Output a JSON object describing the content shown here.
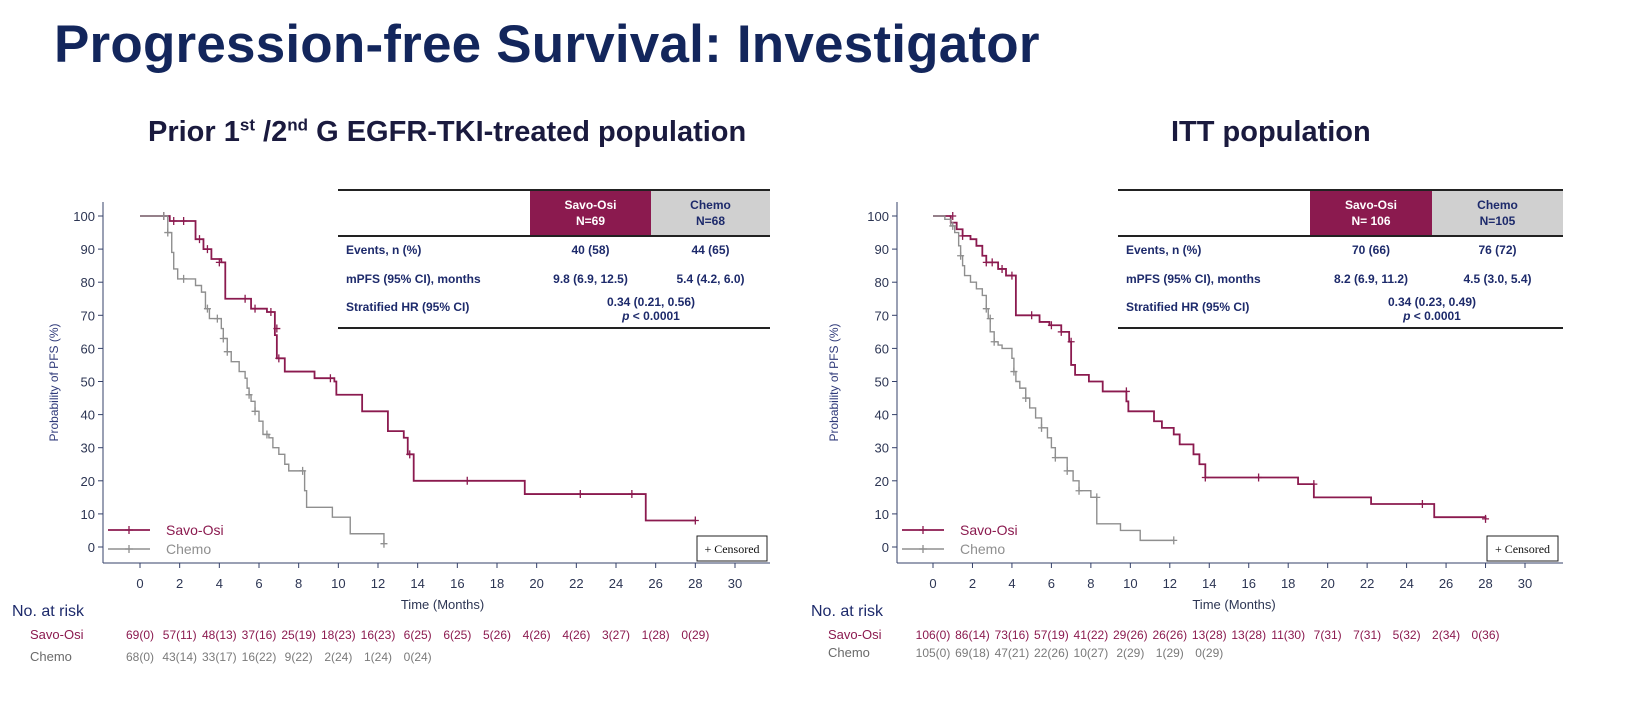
{
  "slide": {
    "title": "Progression-free Survival: Investigator"
  },
  "colors": {
    "title": "#13265c",
    "savo": "#8b1a4f",
    "chemo": "#8f8f8f",
    "axis": "#34406a"
  },
  "panels": [
    {
      "subtitle": {
        "pre": "Prior 1",
        "sup1": "st",
        "mid": " /2",
        "sup2": "nd",
        "post": " G EGFR-TKI-treated population"
      },
      "table": {
        "headers": [
          {
            "line1": "Savo-Osi",
            "line2": "N=69"
          },
          {
            "line1": "Chemo",
            "line2": "N=68"
          }
        ],
        "rows": [
          {
            "label": "Events, n (%)",
            "savo": "40 (58)",
            "chemo": "44 (65)"
          },
          {
            "label": "mPFS (95% CI), months",
            "savo": "9.8 (6.9, 12.5)",
            "chemo": "5.4 (4.2, 6.0)"
          }
        ],
        "hr": {
          "label": "Stratified HR (95% CI)",
          "value": "0.34 (0.21, 0.56)",
          "p_italic": "p",
          "p_rest": " < 0.0001"
        }
      },
      "risk": {
        "header": "No. at risk",
        "savo_label": "Savo-Osi",
        "chemo_label": "Chemo",
        "savo": [
          "69(0)",
          "57(11)",
          "48(13)",
          "37(16)",
          "25(19)",
          "18(23)",
          "16(23)",
          "6(25)",
          "6(25)",
          "5(26)",
          "4(26)",
          "4(26)",
          "3(27)",
          "1(28)",
          "0(29)"
        ],
        "chemo": [
          "68(0)",
          "43(14)",
          "33(17)",
          "16(22)",
          "9(22)",
          "2(24)",
          "1(24)",
          "0(24)"
        ]
      }
    },
    {
      "subtitle": {
        "pre": "ITT population",
        "sup1": "",
        "mid": "",
        "sup2": "",
        "post": ""
      },
      "table": {
        "headers": [
          {
            "line1": "Savo-Osi",
            "line2": "N= 106"
          },
          {
            "line1": "Chemo",
            "line2": "N=105"
          }
        ],
        "rows": [
          {
            "label": "Events, n (%)",
            "savo": "70 (66)",
            "chemo": "76 (72)"
          },
          {
            "label": "mPFS (95% CI), months",
            "savo": "8.2 (6.9, 11.2)",
            "chemo": "4.5 (3.0, 5.4)"
          }
        ],
        "hr": {
          "label": "Stratified HR (95% CI)",
          "value": "0.34 (0.23, 0.49)",
          "p_italic": "p",
          "p_rest": " < 0.0001"
        }
      },
      "risk": {
        "header": "No. at risk",
        "savo_label": "Savo-Osi",
        "chemo_label": "Chemo",
        "savo": [
          "106(0)",
          "86(14)",
          "73(16)",
          "57(19)",
          "41(22)",
          "29(26)",
          "26(26)",
          "13(28)",
          "13(28)",
          "11(30)",
          "7(31)",
          "7(31)",
          "5(32)",
          "2(34)",
          "0(36)"
        ],
        "chemo": [
          "105(0)",
          "69(18)",
          "47(21)",
          "22(26)",
          "10(27)",
          "2(29)",
          "1(29)",
          "0(29)"
        ]
      }
    }
  ],
  "chart_data": [
    {
      "type": "line",
      "title": "Prior 1st /2nd G EGFR-TKI-treated population",
      "xlabel": "Time (Months)",
      "ylabel": "Probability of PFS (%)",
      "xlim": [
        0,
        30
      ],
      "ylim": [
        0,
        100
      ],
      "xticks": [
        0,
        2,
        4,
        6,
        8,
        10,
        12,
        14,
        16,
        18,
        20,
        22,
        24,
        26,
        28,
        30
      ],
      "yticks": [
        0,
        10,
        20,
        30,
        40,
        50,
        60,
        70,
        80,
        90,
        100
      ],
      "legend": [
        "Savo-Osi",
        "Chemo"
      ],
      "censored_label": "+ Censored",
      "series": [
        {
          "name": "Savo-Osi",
          "steps": [
            [
              0,
              100
            ],
            [
              1.5,
              98.5
            ],
            [
              2.8,
              93
            ],
            [
              3.2,
              90
            ],
            [
              3.6,
              87
            ],
            [
              4.1,
              86
            ],
            [
              4.3,
              75
            ],
            [
              5.6,
              72
            ],
            [
              6.4,
              71
            ],
            [
              6.8,
              64
            ],
            [
              6.9,
              57
            ],
            [
              7.3,
              53
            ],
            [
              8.8,
              51
            ],
            [
              9.8,
              50
            ],
            [
              9.9,
              46
            ],
            [
              11.2,
              41
            ],
            [
              12.5,
              35
            ],
            [
              13.3,
              33
            ],
            [
              13.5,
              28
            ],
            [
              13.8,
              20
            ],
            [
              19.4,
              16
            ],
            [
              25.5,
              8
            ],
            [
              28,
              8
            ]
          ],
          "censors": [
            [
              1.2,
              100
            ],
            [
              1.7,
              98.5
            ],
            [
              2.2,
              98.5
            ],
            [
              3.0,
              93
            ],
            [
              3.4,
              90
            ],
            [
              4.0,
              86
            ],
            [
              5.3,
              75
            ],
            [
              5.8,
              72
            ],
            [
              6.6,
              71
            ],
            [
              6.9,
              66
            ],
            [
              7.0,
              57
            ],
            [
              9.6,
              51
            ],
            [
              13.6,
              28
            ],
            [
              16.5,
              20
            ],
            [
              22.2,
              16
            ],
            [
              24.8,
              16
            ],
            [
              28,
              8
            ]
          ]
        },
        {
          "name": "Chemo",
          "steps": [
            [
              0,
              100
            ],
            [
              1.4,
              95
            ],
            [
              1.6,
              89
            ],
            [
              1.7,
              84
            ],
            [
              1.9,
              81
            ],
            [
              2.8,
              79
            ],
            [
              3.1,
              77
            ],
            [
              3.3,
              72
            ],
            [
              3.5,
              69
            ],
            [
              4.1,
              66
            ],
            [
              4.2,
              63
            ],
            [
              4.4,
              59
            ],
            [
              4.6,
              56
            ],
            [
              5.0,
              53
            ],
            [
              5.3,
              51
            ],
            [
              5.4,
              48
            ],
            [
              5.5,
              46
            ],
            [
              5.6,
              44
            ],
            [
              5.8,
              41
            ],
            [
              6.0,
              38
            ],
            [
              6.2,
              34
            ],
            [
              6.5,
              33
            ],
            [
              6.7,
              30
            ],
            [
              7.0,
              28
            ],
            [
              7.3,
              25
            ],
            [
              7.5,
              23
            ],
            [
              8.3,
              17
            ],
            [
              8.4,
              12
            ],
            [
              9.7,
              9
            ],
            [
              10.6,
              4
            ],
            [
              12.3,
              1
            ]
          ],
          "censors": [
            [
              1.2,
              100
            ],
            [
              1.4,
              95
            ],
            [
              2.2,
              81
            ],
            [
              3.4,
              72
            ],
            [
              3.9,
              69
            ],
            [
              4.2,
              63
            ],
            [
              4.4,
              59
            ],
            [
              5.5,
              46
            ],
            [
              5.8,
              41
            ],
            [
              6.4,
              34
            ],
            [
              8.2,
              23
            ],
            [
              12.3,
              1
            ]
          ]
        }
      ]
    },
    {
      "type": "line",
      "title": "ITT population",
      "xlabel": "Time (Months)",
      "ylabel": "Probability of PFS (%)",
      "xlim": [
        0,
        30
      ],
      "ylim": [
        0,
        100
      ],
      "xticks": [
        0,
        2,
        4,
        6,
        8,
        10,
        12,
        14,
        16,
        18,
        20,
        22,
        24,
        26,
        28,
        30
      ],
      "yticks": [
        0,
        10,
        20,
        30,
        40,
        50,
        60,
        70,
        80,
        90,
        100
      ],
      "legend": [
        "Savo-Osi",
        "Chemo"
      ],
      "censored_label": "+ Censored",
      "series": [
        {
          "name": "Savo-Osi",
          "steps": [
            [
              0,
              100
            ],
            [
              0.9,
              98
            ],
            [
              1.2,
              96
            ],
            [
              1.5,
              94
            ],
            [
              1.9,
              93
            ],
            [
              2.2,
              91
            ],
            [
              2.5,
              88
            ],
            [
              2.7,
              86
            ],
            [
              3.3,
              84
            ],
            [
              3.7,
              82
            ],
            [
              4.2,
              70
            ],
            [
              5.4,
              68
            ],
            [
              5.9,
              67
            ],
            [
              6.5,
              65
            ],
            [
              6.9,
              62
            ],
            [
              7.0,
              55
            ],
            [
              7.2,
              52
            ],
            [
              7.9,
              50
            ],
            [
              8.6,
              47
            ],
            [
              9.8,
              44
            ],
            [
              9.9,
              41
            ],
            [
              11.2,
              38
            ],
            [
              11.6,
              36
            ],
            [
              12.2,
              34
            ],
            [
              12.5,
              31
            ],
            [
              13.2,
              28
            ],
            [
              13.5,
              25
            ],
            [
              13.8,
              21
            ],
            [
              18.5,
              19
            ],
            [
              19.3,
              15
            ],
            [
              22.2,
              13
            ],
            [
              25.4,
              9
            ],
            [
              28,
              8.5
            ]
          ],
          "censors": [
            [
              1.0,
              100
            ],
            [
              1.5,
              94
            ],
            [
              2.7,
              86
            ],
            [
              3.0,
              86
            ],
            [
              3.5,
              84
            ],
            [
              4.0,
              82
            ],
            [
              5.0,
              70
            ],
            [
              6.0,
              67
            ],
            [
              6.5,
              65
            ],
            [
              7.0,
              62
            ],
            [
              9.8,
              47
            ],
            [
              13.8,
              21
            ],
            [
              16.5,
              21
            ],
            [
              19.3,
              19
            ],
            [
              24.8,
              13
            ],
            [
              28,
              8.5
            ]
          ]
        },
        {
          "name": "Chemo",
          "steps": [
            [
              0,
              100
            ],
            [
              0.6,
              99
            ],
            [
              0.9,
              97
            ],
            [
              1.1,
              95
            ],
            [
              1.3,
              91
            ],
            [
              1.4,
              88
            ],
            [
              1.5,
              85
            ],
            [
              1.6,
              82
            ],
            [
              1.9,
              80
            ],
            [
              2.2,
              78
            ],
            [
              2.5,
              76
            ],
            [
              2.7,
              72
            ],
            [
              2.8,
              69
            ],
            [
              2.9,
              65
            ],
            [
              3.1,
              62
            ],
            [
              3.3,
              61
            ],
            [
              3.5,
              60
            ],
            [
              4.0,
              57
            ],
            [
              4.1,
              53
            ],
            [
              4.2,
              50
            ],
            [
              4.4,
              48
            ],
            [
              4.7,
              45
            ],
            [
              4.9,
              42
            ],
            [
              5.2,
              39
            ],
            [
              5.5,
              36
            ],
            [
              5.8,
              33
            ],
            [
              6.0,
              30
            ],
            [
              6.2,
              27
            ],
            [
              6.8,
              23
            ],
            [
              7.1,
              20
            ],
            [
              7.4,
              17
            ],
            [
              8.0,
              15
            ],
            [
              8.3,
              7
            ],
            [
              9.5,
              5
            ],
            [
              10.5,
              2
            ],
            [
              12.2,
              2
            ]
          ],
          "censors": [
            [
              1.0,
              97
            ],
            [
              1.4,
              88
            ],
            [
              2.7,
              72
            ],
            [
              2.9,
              69
            ],
            [
              3.1,
              62
            ],
            [
              4.1,
              53
            ],
            [
              4.7,
              45
            ],
            [
              5.5,
              36
            ],
            [
              6.2,
              27
            ],
            [
              6.8,
              23
            ],
            [
              7.4,
              17
            ],
            [
              8.3,
              15
            ],
            [
              12.2,
              2
            ]
          ]
        }
      ]
    }
  ]
}
